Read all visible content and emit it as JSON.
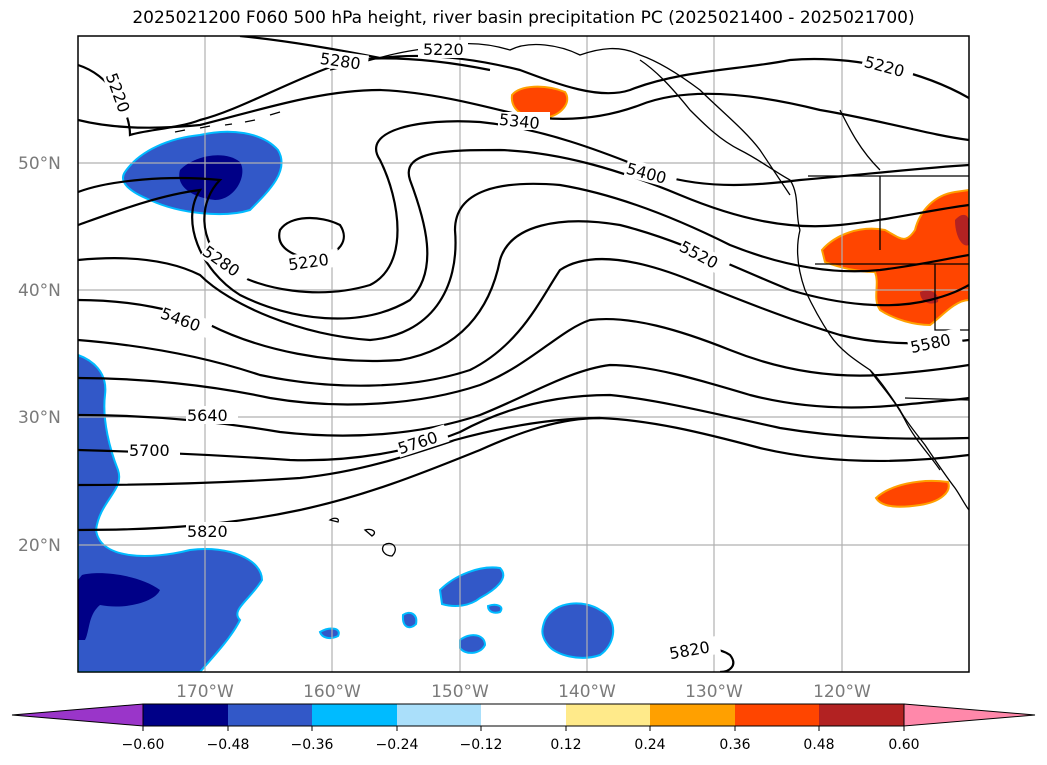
{
  "title": "2025021200 F060 500 hPa height, river basin precipitation PC (2025021400 - 2025021700)",
  "map": {
    "lat_ticks": [
      "50°N",
      "40°N",
      "30°N",
      "20°N"
    ],
    "lon_ticks": [
      "170°W",
      "160°W",
      "150°W",
      "140°W",
      "130°W",
      "120°W"
    ],
    "contour_labels": [
      "5220",
      "5280",
      "5220",
      "5340",
      "5400",
      "5520",
      "5280",
      "5220",
      "5460",
      "5580",
      "5640",
      "5700",
      "5760",
      "5820",
      "5820",
      "5220"
    ]
  },
  "colorbar": {
    "ticks": [
      "−0.60",
      "−0.48",
      "−0.36",
      "−0.24",
      "−0.12",
      "0.12",
      "0.24",
      "0.36",
      "0.48",
      "0.60"
    ],
    "colors": [
      "#9a35c9",
      "#000087",
      "#3258c8",
      "#00bbff",
      "#aadffa",
      "#ffffff",
      "#ffea8a",
      "#ffa000",
      "#ff4500",
      "#b22222",
      "#ff88aa"
    ]
  },
  "legend_colors": {
    "strong_negative": "#000087",
    "negative": "#3258c8",
    "weak_negative": "#00bbff",
    "positive": "#ff4500",
    "strong_positive": "#b22222",
    "weak_positive": "#ffa000"
  }
}
